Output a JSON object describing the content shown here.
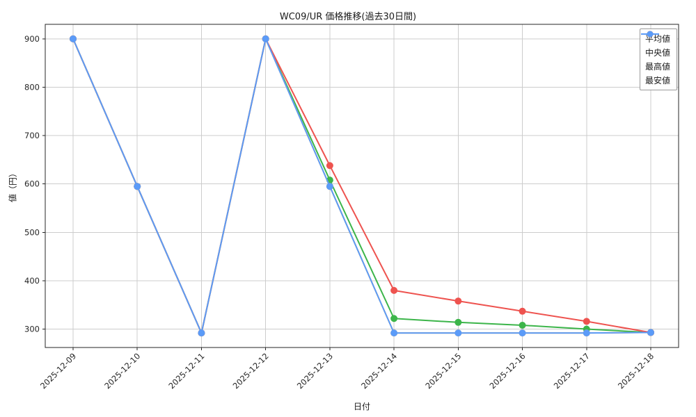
{
  "chart_data": {
    "type": "line",
    "title": "WC09/UR 価格推移(過去30日間)",
    "xlabel": "日付",
    "ylabel": "値（円）",
    "x": [
      "2025-12-09",
      "2025-12-10",
      "2025-12-11",
      "2025-12-12",
      "2025-12-13",
      "2025-12-14",
      "2025-12-15",
      "2025-12-16",
      "2025-12-17",
      "2025-12-18"
    ],
    "series": [
      {
        "name": "平均値",
        "color": "#3cb54a",
        "values": [
          900,
          595,
          292,
          900,
          608,
          322,
          314,
          308,
          300,
          293
        ]
      },
      {
        "name": "中央値",
        "color": "#ffa726",
        "values": [
          900,
          595,
          292,
          900,
          595,
          292,
          292,
          292,
          292,
          293
        ]
      },
      {
        "name": "最高値",
        "color": "#ee534f",
        "values": [
          900,
          595,
          292,
          900,
          638,
          380,
          358,
          337,
          316,
          293
        ]
      },
      {
        "name": "最安値",
        "color": "#5b9bf8",
        "values": [
          900,
          595,
          292,
          900,
          595,
          292,
          292,
          292,
          292,
          293
        ]
      }
    ],
    "ylim": [
      262,
      930
    ],
    "y_ticks": [
      300,
      400,
      500,
      600,
      700,
      800,
      900
    ],
    "grid": true,
    "legend_position": "upper right",
    "grid_color": "#cccccc",
    "axis_color": "#262626"
  }
}
